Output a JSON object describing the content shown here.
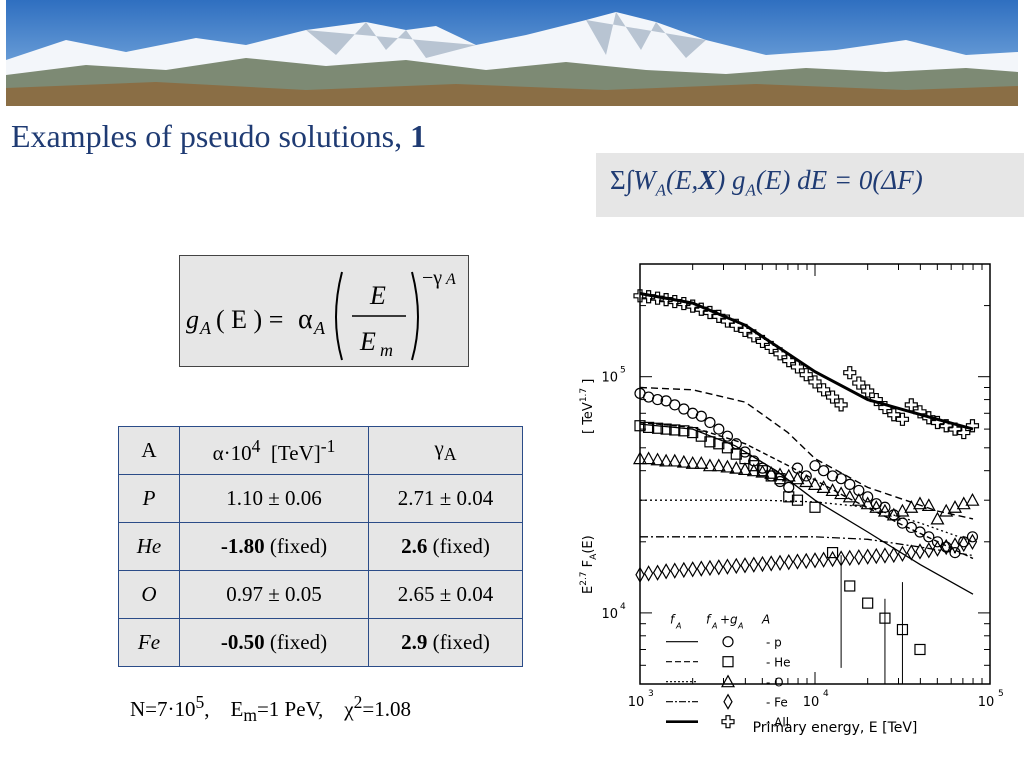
{
  "slide": {
    "title_text": "Examples of pseudo solutions, ",
    "title_number": "1"
  },
  "equation": {
    "sum_integral": "Σ∫",
    "W": "W",
    "W_sub": "A",
    "args": "(E,",
    "X": "X",
    "close": ")",
    "g": " g",
    "g_sub": "A",
    "rest": "(E) dE = 0(",
    "delta": "Δ",
    "F": "F",
    "end": ")"
  },
  "formula": {
    "g": "g",
    "g_sub": "A",
    "arg": "( E ) =",
    "alpha": "α",
    "alpha_sub": "A",
    "numerator": "E",
    "denominator": "E",
    "denominator_sub": "m",
    "exponent": "−γ",
    "exponent_sub": "A"
  },
  "table": {
    "header": {
      "a": "A",
      "alpha": "α·10",
      "alpha_sup": "4",
      "unit": "[TeV]",
      "unit_sup": "-1",
      "gamma": "γ",
      "gamma_sub": "A"
    },
    "rows": [
      {
        "a": "P",
        "alpha_value": "1.10 ± 0.06",
        "alpha_note": "",
        "gamma_value": "2.71 ± 0.04",
        "gamma_note": ""
      },
      {
        "a": "He",
        "alpha_value": "-1.80",
        "alpha_note": " (fixed)",
        "gamma_value": "2.6",
        "gamma_note": " (fixed)"
      },
      {
        "a": "O",
        "alpha_value": "0.97 ± 0.05",
        "alpha_note": "",
        "gamma_value": "2.65 ± 0.04",
        "gamma_note": ""
      },
      {
        "a": "Fe",
        "alpha_value": "-0.50",
        "alpha_note": " (fixed)",
        "gamma_value": "2.9",
        "gamma_note": " (fixed)"
      }
    ]
  },
  "params": {
    "n": "N=7·10",
    "n_sup": "5",
    "n_sep": ",",
    "em": "E",
    "em_sub": "m",
    "em_val": "=1 PeV,",
    "chi": "χ",
    "chi_sup": "2",
    "chi_val": "=1.08"
  },
  "colors": {
    "title": "#1f3b73",
    "box": "#e6e6e6",
    "table_border": "#2b4c88"
  },
  "chart_data": {
    "type": "scatter",
    "x_scale": "log",
    "y_scale": "log",
    "xlim": [
      1000,
      100000
    ],
    "ylim": [
      5000,
      300000
    ],
    "x_ticks": [
      {
        "v": 1000,
        "base": "10",
        "exp": "3"
      },
      {
        "v": 10000,
        "base": "10",
        "exp": "4"
      },
      {
        "v": 100000,
        "base": "10",
        "exp": "5"
      }
    ],
    "y_ticks": [
      {
        "v": 10000,
        "base": "10",
        "exp": "4"
      },
      {
        "v": 100000,
        "base": "10",
        "exp": "5"
      }
    ],
    "xlabel": "Primary energy, E [TeV]",
    "ylabel": {
      "base": "E",
      "sup": "2.7",
      "F": " F",
      "F_sub": "A",
      "arg": "(E)",
      "unit": "[ TeV",
      "unit_sup": "1.7",
      "unit_close": " ]"
    },
    "legend": {
      "header": {
        "fa": "f",
        "fa_sub": "A",
        "fag": "f",
        "fag_sub1": "A",
        "fag_plus": "+g",
        "fag_sub2": "A",
        "a": "A"
      },
      "entries": [
        {
          "label": "- p",
          "line": "solid",
          "marker": "circle"
        },
        {
          "label": "- He",
          "line": "dashed",
          "marker": "square"
        },
        {
          "label": "- O",
          "line": "dotted",
          "marker": "triangle"
        },
        {
          "label": "- Fe",
          "line": "dashdot",
          "marker": "diamond"
        },
        {
          "label": "- All",
          "line": "thick",
          "marker": "cross"
        }
      ]
    },
    "series": [
      {
        "label": "- All",
        "marker": "cross",
        "points": [
          [
            1000,
            220000
          ],
          [
            1120,
            218000
          ],
          [
            1260,
            215000
          ],
          [
            1410,
            212000
          ],
          [
            1580,
            208000
          ],
          [
            1780,
            204000
          ],
          [
            2000,
            199000
          ],
          [
            2240,
            193000
          ],
          [
            2510,
            187000
          ],
          [
            2820,
            180000
          ],
          [
            3160,
            172000
          ],
          [
            3550,
            165000
          ],
          [
            3980,
            157000
          ],
          [
            4470,
            149000
          ],
          [
            5010,
            141000
          ],
          [
            5620,
            133000
          ],
          [
            6310,
            125000
          ],
          [
            7080,
            117000
          ],
          [
            7940,
            110000
          ],
          [
            8910,
            102000
          ],
          [
            10000,
            95000
          ],
          [
            11200,
            88000
          ],
          [
            12600,
            82000
          ],
          [
            14100,
            76000
          ],
          [
            15800,
            104000
          ],
          [
            17800,
            94000
          ],
          [
            20000,
            87000
          ],
          [
            22400,
            80000
          ],
          [
            25100,
            74000
          ],
          [
            28200,
            69000
          ],
          [
            31600,
            66000
          ],
          [
            35500,
            76000
          ],
          [
            39800,
            71000
          ],
          [
            44700,
            67000
          ],
          [
            50100,
            64000
          ],
          [
            56200,
            62000
          ],
          [
            63100,
            60000
          ],
          [
            70800,
            58000
          ],
          [
            79400,
            62000
          ]
        ]
      },
      {
        "label": "- p",
        "marker": "circle",
        "points": [
          [
            1000,
            85000
          ],
          [
            1120,
            82000
          ],
          [
            1260,
            80000
          ],
          [
            1410,
            79000
          ],
          [
            1580,
            76000
          ],
          [
            1780,
            73000
          ],
          [
            2000,
            70000
          ],
          [
            2240,
            68000
          ],
          [
            2510,
            64000
          ],
          [
            2820,
            60000
          ],
          [
            3160,
            56000
          ],
          [
            3550,
            52000
          ],
          [
            3980,
            48000
          ],
          [
            4470,
            44000
          ],
          [
            5010,
            41000
          ],
          [
            5620,
            38000
          ],
          [
            6310,
            36000
          ],
          [
            7080,
            34000
          ],
          [
            7940,
            41000
          ],
          [
            8910,
            38000
          ],
          [
            10000,
            42000
          ],
          [
            11200,
            40000
          ],
          [
            12600,
            38000
          ],
          [
            14100,
            37000
          ],
          [
            15800,
            35000
          ],
          [
            17800,
            33000
          ],
          [
            20000,
            31000
          ],
          [
            22400,
            29000
          ],
          [
            25100,
            28000
          ],
          [
            28200,
            26000
          ],
          [
            31600,
            24000
          ],
          [
            35500,
            23000
          ],
          [
            39800,
            22000
          ],
          [
            44700,
            21000
          ],
          [
            50100,
            20000
          ],
          [
            56200,
            19000
          ],
          [
            63100,
            18000
          ],
          [
            70800,
            20000
          ],
          [
            79400,
            21000
          ]
        ]
      },
      {
        "label": "- He",
        "marker": "square",
        "points": [
          [
            1000,
            62000
          ],
          [
            1120,
            61000
          ],
          [
            1260,
            60500
          ],
          [
            1410,
            60000
          ],
          [
            1580,
            59500
          ],
          [
            1780,
            59000
          ],
          [
            2000,
            58000
          ],
          [
            2240,
            56000
          ],
          [
            2510,
            53000
          ],
          [
            2820,
            52000
          ],
          [
            3160,
            50000
          ],
          [
            3550,
            47000
          ],
          [
            3980,
            45000
          ],
          [
            4470,
            42000
          ],
          [
            5010,
            40000
          ],
          [
            5620,
            38000
          ],
          [
            6310,
            37000
          ],
          [
            7080,
            31000
          ],
          [
            7940,
            30000
          ],
          [
            10000,
            28000
          ],
          [
            12600,
            18000
          ],
          [
            15800,
            13000
          ],
          [
            20000,
            11000
          ],
          [
            25100,
            9500
          ],
          [
            31600,
            8500
          ],
          [
            39800,
            7000
          ]
        ]
      },
      {
        "label": "- O",
        "marker": "triangle",
        "points": [
          [
            1000,
            45000
          ],
          [
            1120,
            45000
          ],
          [
            1260,
            44500
          ],
          [
            1410,
            44000
          ],
          [
            1580,
            44000
          ],
          [
            1780,
            43500
          ],
          [
            2000,
            43000
          ],
          [
            2240,
            43000
          ],
          [
            2510,
            42000
          ],
          [
            2820,
            42000
          ],
          [
            3160,
            41500
          ],
          [
            3550,
            41000
          ],
          [
            3980,
            40500
          ],
          [
            4470,
            40000
          ],
          [
            5010,
            39500
          ],
          [
            5620,
            39000
          ],
          [
            6310,
            38500
          ],
          [
            7080,
            38000
          ],
          [
            7940,
            37000
          ],
          [
            8910,
            36000
          ],
          [
            10000,
            35000
          ],
          [
            11200,
            34000
          ],
          [
            12600,
            33000
          ],
          [
            14100,
            32000
          ],
          [
            15800,
            31000
          ],
          [
            17800,
            30000
          ],
          [
            20000,
            29000
          ],
          [
            22400,
            28000
          ],
          [
            25100,
            27000
          ],
          [
            28200,
            26000
          ],
          [
            31600,
            27000
          ],
          [
            35500,
            28000
          ],
          [
            39800,
            29000
          ],
          [
            44700,
            28500
          ],
          [
            50100,
            25000
          ],
          [
            56200,
            27000
          ],
          [
            63100,
            28000
          ],
          [
            70800,
            29000
          ],
          [
            79400,
            30000
          ]
        ]
      },
      {
        "label": "- Fe",
        "marker": "diamond",
        "points": [
          [
            1000,
            14500
          ],
          [
            1120,
            14700
          ],
          [
            1260,
            14800
          ],
          [
            1410,
            15000
          ],
          [
            1580,
            15100
          ],
          [
            1780,
            15200
          ],
          [
            2000,
            15300
          ],
          [
            2240,
            15400
          ],
          [
            2510,
            15500
          ],
          [
            2820,
            15600
          ],
          [
            3160,
            15700
          ],
          [
            3550,
            15800
          ],
          [
            3980,
            15900
          ],
          [
            4470,
            16000
          ],
          [
            5010,
            16100
          ],
          [
            5620,
            16200
          ],
          [
            6310,
            16300
          ],
          [
            7080,
            16400
          ],
          [
            7940,
            16500
          ],
          [
            8910,
            16600
          ],
          [
            10000,
            16700
          ],
          [
            11200,
            16800
          ],
          [
            12600,
            16900
          ],
          [
            14100,
            17000
          ],
          [
            15800,
            17100
          ],
          [
            17800,
            17200
          ],
          [
            20000,
            17300
          ],
          [
            22400,
            17400
          ],
          [
            25100,
            17500
          ],
          [
            28200,
            17600
          ],
          [
            31600,
            17800
          ],
          [
            35500,
            18000
          ],
          [
            39800,
            18200
          ],
          [
            44700,
            18400
          ],
          [
            50100,
            18700
          ],
          [
            56200,
            19000
          ],
          [
            63100,
            19300
          ],
          [
            70800,
            19600
          ],
          [
            79400,
            20000
          ]
        ]
      }
    ]
  }
}
